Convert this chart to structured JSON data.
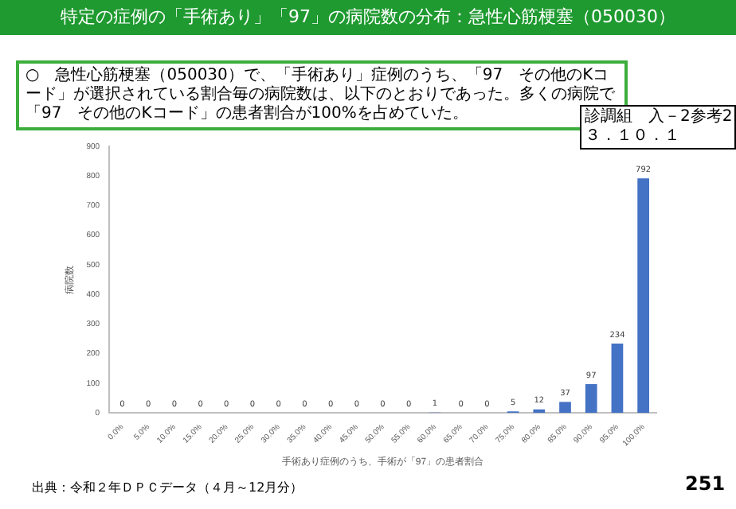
{
  "chart_data": {
    "type": "bar",
    "title": "特定の症例の「手術あり」「97」の病院数の分布：急性心筋梗塞（050030）",
    "subtitle": "○　急性心筋梗塞（050030）で、「手術あり」症例のうち、「97　その他のKコード」が選択されている割合毎の病院数は、以下のとおりであった。多くの病院で「97　その他のKコード」の患者割合が100%を占めていた。",
    "xlabel": "手術あり症例のうち、手術が「97」の患者割合",
    "ylabel": "病院数",
    "categories": [
      "0.0%",
      "5.0%",
      "10.0%",
      "15.0%",
      "20.0%",
      "25.0%",
      "30.0%",
      "35.0%",
      "40.0%",
      "45.0%",
      "50.0%",
      "55.0%",
      "60.0%",
      "65.0%",
      "70.0%",
      "75.0%",
      "80.0%",
      "85.0%",
      "90.0%",
      "95.0%",
      "100.0%"
    ],
    "values": [
      0,
      0,
      0,
      0,
      0,
      0,
      0,
      0,
      0,
      0,
      0,
      0,
      1,
      0,
      0,
      5,
      12,
      37,
      97,
      234,
      792
    ],
    "color": "#4472c4",
    "ylim": [
      0,
      900
    ],
    "yticks": [
      0,
      100,
      200,
      300,
      400,
      500,
      600,
      700,
      800,
      900
    ],
    "grid": false,
    "data_labels": true,
    "annotations": [
      "診調組　入－2参考2\n３．１０．１",
      "出典：令和２年ＤＰＣデータ（４月～12月分）",
      "251"
    ]
  }
}
